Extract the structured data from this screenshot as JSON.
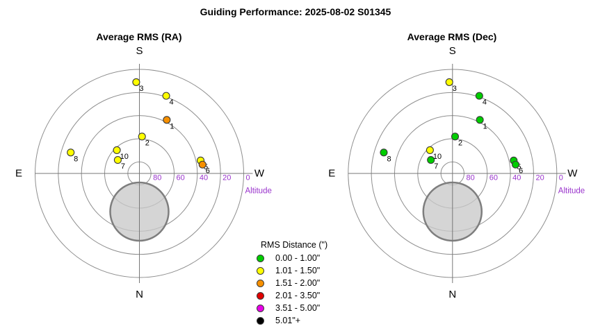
{
  "page_title": "Guiding Performance: 2025-08-02 S01345",
  "legend": {
    "title": "RMS Distance (\")",
    "items": [
      {
        "label": "0.00 - 1.00\"",
        "color": "#00CD00"
      },
      {
        "label": "1.01 - 1.50\"",
        "color": "#FFFF00"
      },
      {
        "label": "1.51 - 2.00\"",
        "color": "#F79000"
      },
      {
        "label": "2.01 - 3.50\"",
        "color": "#E00000"
      },
      {
        "label": "3.51 - 5.00\"",
        "color": "#E800E8"
      },
      {
        "label": "5.01\"+",
        "color": "#000000"
      }
    ]
  },
  "chart_data": [
    {
      "type": "scatter",
      "projection": "polar-sky",
      "title": "Average RMS (RA)",
      "compass": {
        "top": "S",
        "bottom": "N",
        "left": "E",
        "right": "W"
      },
      "radial_axis": {
        "label": "Altitude",
        "ticks": [
          80,
          60,
          40,
          20,
          0
        ],
        "range": [
          90,
          0
        ],
        "color": "#9932CC"
      },
      "points": [
        {
          "id": "1",
          "azimuth_deg": 207,
          "altitude_deg": 38,
          "rms_bin": 2
        },
        {
          "id": "2",
          "azimuth_deg": 184,
          "altitude_deg": 58,
          "rms_bin": 1
        },
        {
          "id": "3",
          "azimuth_deg": 178,
          "altitude_deg": 11,
          "rms_bin": 1
        },
        {
          "id": "4",
          "azimuth_deg": 199,
          "altitude_deg": 19,
          "rms_bin": 1
        },
        {
          "id": "5",
          "azimuth_deg": 258,
          "altitude_deg": 36,
          "rms_bin": 1
        },
        {
          "id": "6",
          "azimuth_deg": 262,
          "altitude_deg": 35,
          "rms_bin": 2
        },
        {
          "id": "7",
          "azimuth_deg": 122,
          "altitude_deg": 68,
          "rms_bin": 1
        },
        {
          "id": "8",
          "azimuth_deg": 107,
          "altitude_deg": 28,
          "rms_bin": 1
        },
        {
          "id": "10",
          "azimuth_deg": 136,
          "altitude_deg": 62,
          "rms_bin": 1
        }
      ],
      "moon": {
        "azimuth_deg": 0,
        "altitude_deg": 57
      }
    },
    {
      "type": "scatter",
      "projection": "polar-sky",
      "title": "Average RMS (Dec)",
      "compass": {
        "top": "S",
        "bottom": "N",
        "left": "E",
        "right": "W"
      },
      "radial_axis": {
        "label": "Altitude",
        "ticks": [
          80,
          60,
          40,
          20,
          0
        ],
        "range": [
          90,
          0
        ],
        "color": "#9932CC"
      },
      "points": [
        {
          "id": "1",
          "azimuth_deg": 207,
          "altitude_deg": 38,
          "rms_bin": 0
        },
        {
          "id": "2",
          "azimuth_deg": 184,
          "altitude_deg": 58,
          "rms_bin": 0
        },
        {
          "id": "3",
          "azimuth_deg": 178,
          "altitude_deg": 11,
          "rms_bin": 1
        },
        {
          "id": "4",
          "azimuth_deg": 199,
          "altitude_deg": 19,
          "rms_bin": 0
        },
        {
          "id": "5",
          "azimuth_deg": 258,
          "altitude_deg": 36,
          "rms_bin": 0
        },
        {
          "id": "6",
          "azimuth_deg": 262,
          "altitude_deg": 35,
          "rms_bin": 0
        },
        {
          "id": "7",
          "azimuth_deg": 122,
          "altitude_deg": 68,
          "rms_bin": 0
        },
        {
          "id": "8",
          "azimuth_deg": 107,
          "altitude_deg": 28,
          "rms_bin": 0
        },
        {
          "id": "10",
          "azimuth_deg": 136,
          "altitude_deg": 62,
          "rms_bin": 1
        }
      ],
      "moon": {
        "azimuth_deg": 0,
        "altitude_deg": 57
      }
    }
  ]
}
